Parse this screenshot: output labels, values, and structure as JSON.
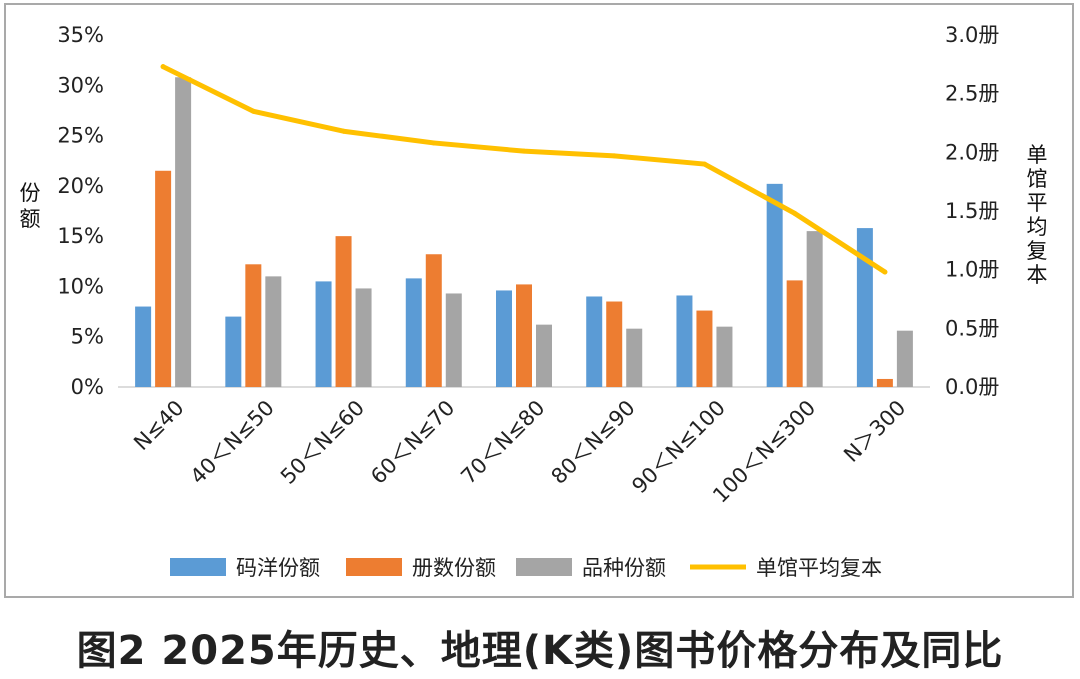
{
  "chart_data": {
    "type": "bar",
    "categories": [
      "N≤40",
      "40＜N≤50",
      "50＜N≤60",
      "60＜N≤70",
      "70＜N≤80",
      "80＜N≤90",
      "90＜N≤100",
      "100＜N≤300",
      "N＞300"
    ],
    "series": [
      {
        "name": "码洋份额",
        "type": "bar",
        "axis": "left",
        "color": "#5b9bd5",
        "values": [
          8.0,
          7.0,
          10.5,
          10.8,
          9.6,
          9.0,
          9.1,
          20.2,
          15.8
        ]
      },
      {
        "name": "册数份额",
        "type": "bar",
        "axis": "left",
        "color": "#ed7d31",
        "values": [
          21.5,
          12.2,
          15.0,
          13.2,
          10.2,
          8.5,
          7.6,
          10.6,
          0.8
        ]
      },
      {
        "name": "品种份额",
        "type": "bar",
        "axis": "left",
        "color": "#a5a5a5",
        "values": [
          30.8,
          11.0,
          9.8,
          9.3,
          6.2,
          5.8,
          6.0,
          15.5,
          5.6
        ]
      },
      {
        "name": "单馆平均复本",
        "type": "line",
        "axis": "right",
        "color": "#ffc000",
        "values": [
          2.73,
          2.35,
          2.18,
          2.08,
          2.01,
          1.97,
          1.9,
          1.48,
          0.98
        ]
      }
    ],
    "ylabel": "份额",
    "y2label": "单馆平均复本",
    "ylim": [
      0,
      35
    ],
    "y2lim": [
      0,
      3.0
    ],
    "yticks": [
      "0%",
      "5%",
      "10%",
      "15%",
      "20%",
      "25%",
      "30%",
      "35%"
    ],
    "y2ticks": [
      "0.0册",
      "0.5册",
      "1.0册",
      "1.5册",
      "2.0册",
      "2.5册",
      "3.0册"
    ],
    "legend_position": "bottom",
    "grid": false
  },
  "caption": "图2  2025年历史、地理(K类)图书价格分布及同比"
}
